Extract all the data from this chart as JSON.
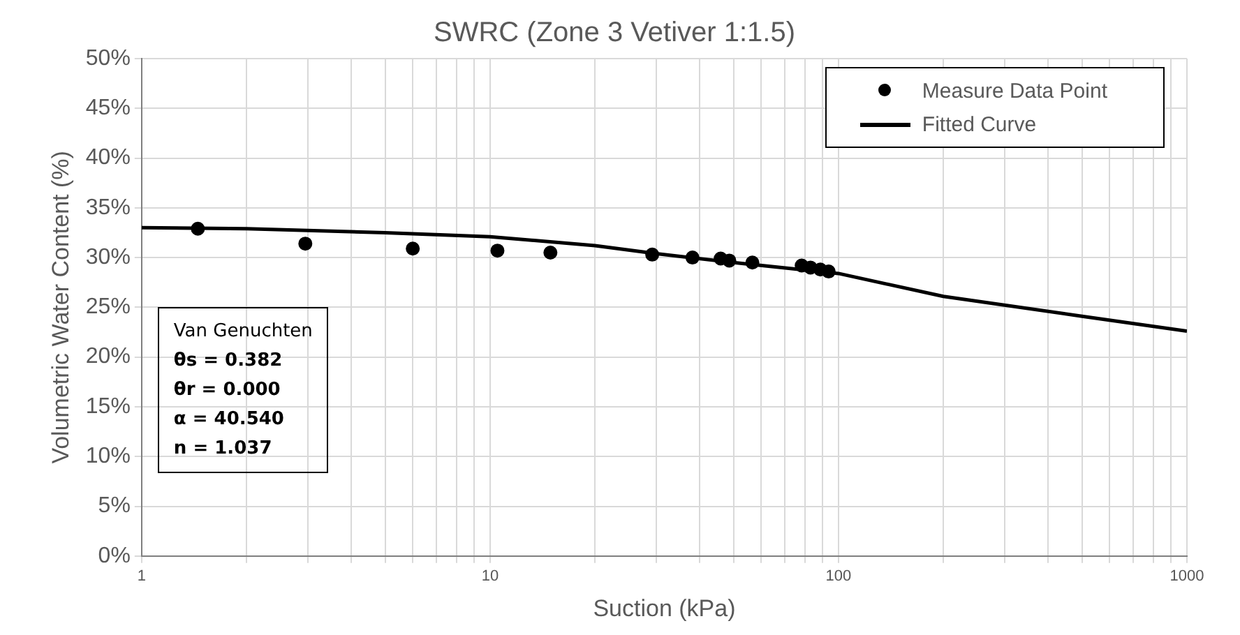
{
  "chart_data": {
    "type": "scatter",
    "title": "SWRC (Zone 3 Vetiver 1:1.5)",
    "xlabel": "Suction (kPa)",
    "ylabel": "Volumetric Water Content (%)",
    "annotations": [
      "Van Genuchten",
      "θs = 0.382",
      "θr = 0.000",
      "α = 40.540",
      "n = 1.037"
    ],
    "log": "x",
    "grid": true,
    "legend": "top right",
    "xlim": [
      1,
      1000
    ],
    "xticks": [
      1,
      {
        "value": 2,
        "label": null
      },
      {
        "value": 3,
        "label": null
      },
      {
        "value": 4,
        "label": null
      },
      {
        "value": 5,
        "label": null
      },
      {
        "value": 6,
        "label": null
      },
      {
        "value": 7,
        "label": null
      },
      {
        "value": 8,
        "label": null
      },
      {
        "value": 9,
        "label": null
      },
      10,
      {
        "value": 20,
        "label": null
      },
      {
        "value": 30,
        "label": null
      },
      {
        "value": 40,
        "label": null
      },
      {
        "value": 50,
        "label": null
      },
      {
        "value": 60,
        "label": null
      },
      {
        "value": 70,
        "label": null
      },
      {
        "value": 80,
        "label": null
      },
      {
        "value": 90,
        "label": null
      },
      100,
      {
        "value": 200,
        "label": null
      },
      {
        "value": 300,
        "label": null
      },
      {
        "value": 400,
        "label": null
      },
      {
        "value": 500,
        "label": null
      },
      {
        "value": 600,
        "label": null
      },
      {
        "value": 700,
        "label": null
      },
      {
        "value": 800,
        "label": null
      },
      {
        "value": 900,
        "label": null
      },
      1000
    ],
    "ylim": [
      0,
      50
    ],
    "yticks": [
      {
        "value": 0,
        "label": "0%"
      },
      {
        "value": 5,
        "label": "5%"
      },
      {
        "value": 10,
        "label": "10%"
      },
      {
        "value": 15,
        "label": "15%"
      },
      {
        "value": 20,
        "label": "20%"
      },
      {
        "value": 25,
        "label": "25%"
      },
      {
        "value": 30,
        "label": "30%"
      },
      {
        "value": 35,
        "label": "35%"
      },
      {
        "value": 40,
        "label": "40%"
      },
      {
        "value": 45,
        "label": "45%"
      },
      {
        "value": 50,
        "label": "50%"
      }
    ],
    "series": [
      {
        "name": "Measure Data Point",
        "type": "scatter",
        "marker": "circle",
        "color": "#000000",
        "x": [
          1.45,
          2.95,
          6.0,
          10.5,
          14.9,
          29.2,
          38.1,
          45.9,
          48.6,
          56.6,
          78.4,
          83.1,
          88.7,
          93.7
        ],
        "values": [
          32.9,
          31.4,
          30.9,
          30.7,
          30.5,
          30.3,
          30.0,
          29.9,
          29.7,
          29.5,
          29.2,
          29.0,
          28.8,
          28.6
        ]
      },
      {
        "name": "Fitted Curve",
        "type": "line",
        "marker": "none",
        "line_style": "solid",
        "color": "#000000",
        "x": [
          1,
          2,
          5,
          10,
          20,
          30,
          50,
          100,
          200,
          500,
          1000
        ],
        "values": [
          33.0,
          32.9,
          32.5,
          32.1,
          31.2,
          30.4,
          29.5,
          28.4,
          26.1,
          24.1,
          22.6
        ]
      }
    ]
  }
}
